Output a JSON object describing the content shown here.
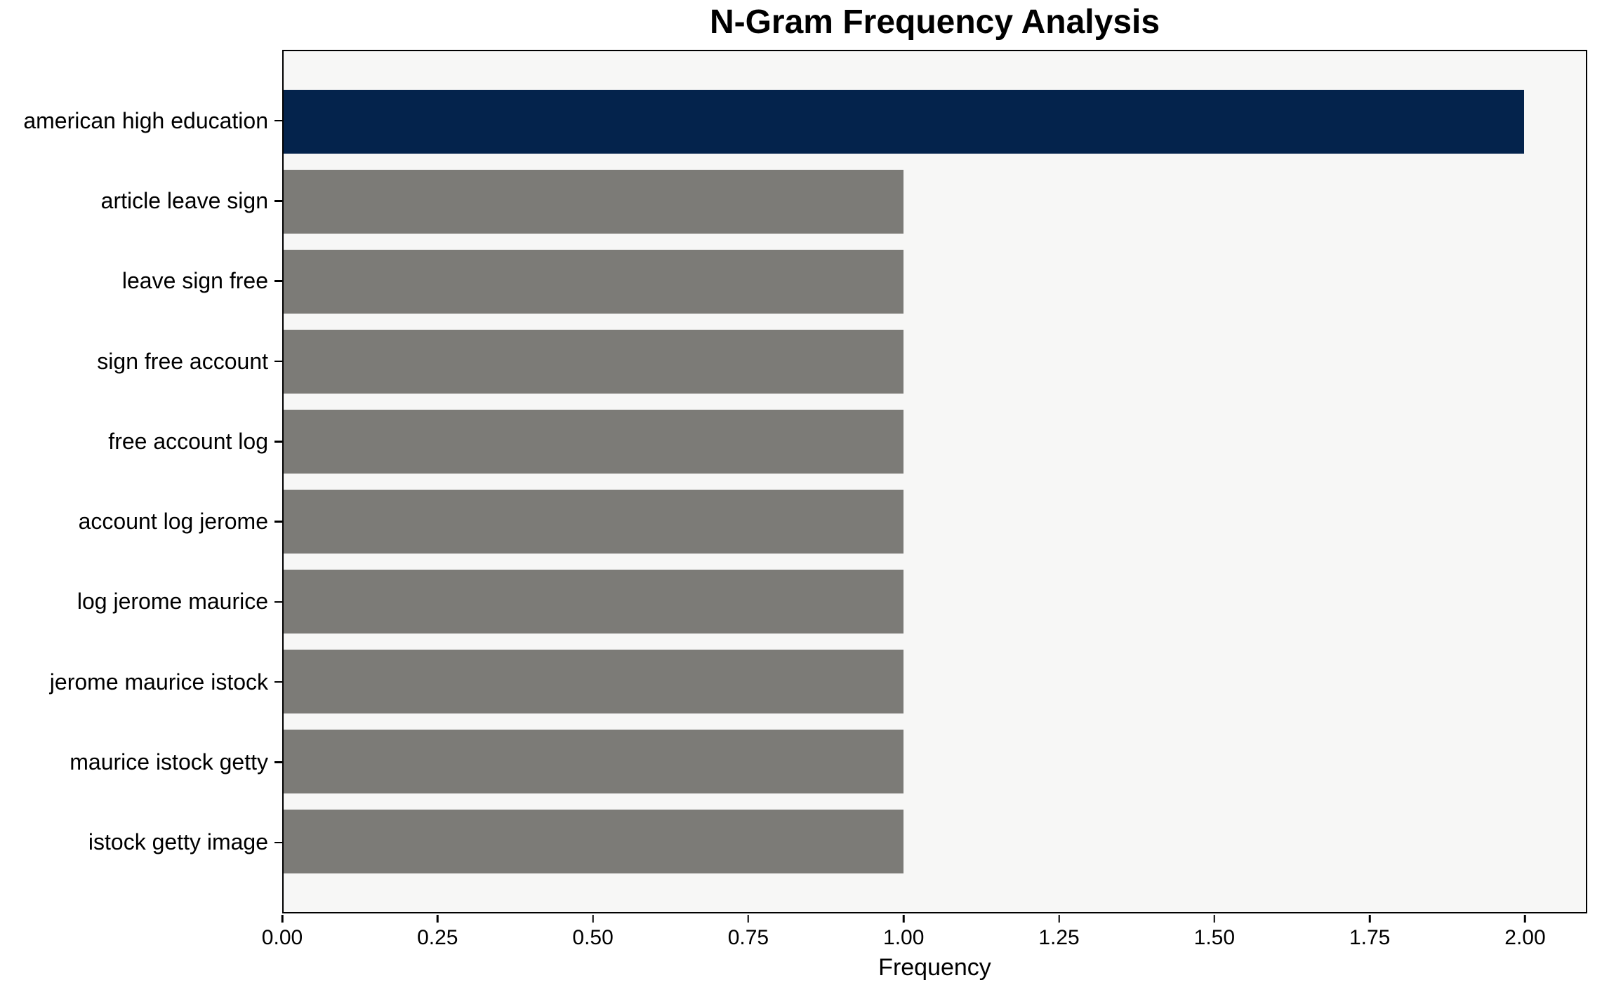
{
  "figure": {
    "background_color": "#ffffff",
    "plot_background_color": "#f7f7f6",
    "spine_color": "#000000"
  },
  "chart_data": {
    "type": "bar",
    "orientation": "horizontal",
    "title": "N-Gram Frequency Analysis",
    "xlabel": "Frequency",
    "ylabel": "",
    "categories": [
      "american high education",
      "article leave sign",
      "leave sign free",
      "sign free account",
      "free account log",
      "account log jerome",
      "log jerome maurice",
      "jerome maurice istock",
      "maurice istock getty",
      "istock getty image"
    ],
    "values": [
      2,
      1,
      1,
      1,
      1,
      1,
      1,
      1,
      1,
      1
    ],
    "bar_colors": [
      "#04234c",
      "#7c7b77",
      "#7c7b77",
      "#7c7b77",
      "#7c7b77",
      "#7c7b77",
      "#7c7b77",
      "#7c7b77",
      "#7c7b77",
      "#7c7b77"
    ],
    "highlight_color": "#04234c",
    "default_bar_color": "#7c7b77",
    "bar_height_ratio": 0.8,
    "x_ticks": [
      0.0,
      0.25,
      0.5,
      0.75,
      1.0,
      1.25,
      1.5,
      1.75,
      2.0
    ],
    "x_tick_labels": [
      "0.00",
      "0.25",
      "0.50",
      "0.75",
      "1.00",
      "1.25",
      "1.50",
      "1.75",
      "2.00"
    ],
    "xlim": [
      0,
      2.1
    ],
    "grid": false,
    "legend": null
  }
}
